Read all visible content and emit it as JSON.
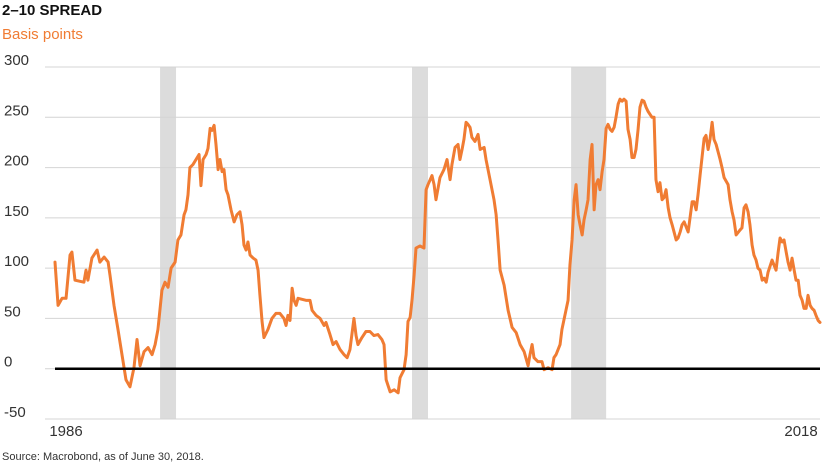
{
  "chart_data": {
    "type": "line",
    "title": "2–10 SPREAD",
    "subtitle": "Basis points",
    "source": "Source: Macrobond, as of June 30, 2018.",
    "color": "#f07c33",
    "shade_color": "#dcdcdc",
    "grid": true,
    "xlim": [
      1986,
      2018.55
    ],
    "xticks": [
      1986,
      2018
    ],
    "ylim": [
      -50,
      300
    ],
    "yticks": [
      -50,
      0,
      50,
      100,
      150,
      200,
      250,
      300
    ],
    "shaded_ranges": [
      [
        1990.47,
        1991.15
      ],
      [
        2001.19,
        2001.87
      ],
      [
        2007.96,
        2009.45
      ]
    ],
    "x": [
      1986.0,
      1986.13,
      1986.3,
      1986.47,
      1986.64,
      1986.72,
      1986.85,
      1987.23,
      1987.32,
      1987.4,
      1987.57,
      1987.79,
      1987.91,
      1988.09,
      1988.26,
      1988.34,
      1988.51,
      1988.68,
      1988.85,
      1989.02,
      1989.19,
      1989.36,
      1989.49,
      1989.62,
      1989.79,
      1989.96,
      1990.13,
      1990.26,
      1990.38,
      1990.55,
      1990.68,
      1990.81,
      1990.94,
      1991.11,
      1991.23,
      1991.36,
      1991.49,
      1991.57,
      1991.66,
      1991.74,
      1991.87,
      1992.0,
      1992.13,
      1992.21,
      1992.3,
      1992.43,
      1992.51,
      1992.6,
      1992.68,
      1992.77,
      1992.85,
      1992.94,
      1993.02,
      1993.11,
      1993.19,
      1993.28,
      1993.36,
      1993.49,
      1993.62,
      1993.74,
      1993.87,
      1993.96,
      1994.04,
      1994.13,
      1994.21,
      1994.3,
      1994.43,
      1994.55,
      1994.64,
      1994.72,
      1994.81,
      1994.89,
      1995.06,
      1995.23,
      1995.4,
      1995.57,
      1995.74,
      1995.83,
      1995.91,
      1996.0,
      1996.09,
      1996.17,
      1996.26,
      1996.34,
      1996.68,
      1996.85,
      1996.94,
      1997.11,
      1997.28,
      1997.45,
      1997.53,
      1997.7,
      1997.83,
      1997.96,
      1998.13,
      1998.3,
      1998.43,
      1998.55,
      1998.72,
      1998.81,
      1998.89,
      1999.06,
      1999.23,
      1999.4,
      1999.57,
      1999.74,
      1999.91,
      2000.0,
      2000.09,
      2000.26,
      2000.43,
      2000.6,
      2000.68,
      2000.85,
      2000.94,
      2001.02,
      2001.11,
      2001.19,
      2001.28,
      2001.36,
      2001.53,
      2001.7,
      2001.79,
      2001.87,
      2002.04,
      2002.13,
      2002.21,
      2002.38,
      2002.55,
      2002.68,
      2002.81,
      2002.89,
      2003.02,
      2003.15,
      2003.23,
      2003.32,
      2003.4,
      2003.49,
      2003.57,
      2003.66,
      2003.74,
      2003.87,
      2004.0,
      2004.09,
      2004.26,
      2004.34,
      2004.51,
      2004.68,
      2004.77,
      2004.85,
      2004.94,
      2005.11,
      2005.28,
      2005.45,
      2005.62,
      2005.79,
      2005.96,
      2006.13,
      2006.21,
      2006.3,
      2006.38,
      2006.55,
      2006.72,
      2006.81,
      2006.98,
      2007.15,
      2007.23,
      2007.32,
      2007.49,
      2007.57,
      2007.74,
      2007.83,
      2007.91,
      2008.0,
      2008.09,
      2008.17,
      2008.26,
      2008.34,
      2008.43,
      2008.51,
      2008.6,
      2008.68,
      2008.77,
      2008.85,
      2008.94,
      2009.02,
      2009.11,
      2009.19,
      2009.28,
      2009.36,
      2009.45,
      2009.53,
      2009.62,
      2009.7,
      2009.79,
      2009.87,
      2009.96,
      2010.04,
      2010.13,
      2010.21,
      2010.3,
      2010.38,
      2010.47,
      2010.55,
      2010.64,
      2010.72,
      2010.81,
      2010.89,
      2010.98,
      2011.06,
      2011.15,
      2011.23,
      2011.4,
      2011.49,
      2011.57,
      2011.66,
      2011.74,
      2011.83,
      2011.91,
      2012.0,
      2012.09,
      2012.17,
      2012.26,
      2012.34,
      2012.43,
      2012.51,
      2012.6,
      2012.68,
      2012.77,
      2012.94,
      2013.02,
      2013.11,
      2013.19,
      2013.28,
      2013.36,
      2013.45,
      2013.53,
      2013.62,
      2013.7,
      2013.79,
      2013.87,
      2013.96,
      2014.04,
      2014.13,
      2014.21,
      2014.3,
      2014.38,
      2014.47,
      2014.64,
      2014.72,
      2014.81,
      2014.89,
      2014.98,
      2015.15,
      2015.23,
      2015.32,
      2015.4,
      2015.49,
      2015.57,
      2015.66,
      2015.74,
      2015.83,
      2015.91,
      2016.0,
      2016.09,
      2016.17,
      2016.26,
      2016.34,
      2016.51,
      2016.68,
      2016.77,
      2016.85,
      2016.94,
      2017.02,
      2017.11,
      2017.19,
      2017.28,
      2017.36,
      2017.45,
      2017.53,
      2017.62,
      2017.7,
      2017.79,
      2017.87,
      2017.96,
      2018.04,
      2018.13,
      2018.21,
      2018.3,
      2018.38,
      2018.47,
      2018.55
    ],
    "values": [
      106,
      63,
      70,
      70,
      113,
      116,
      88,
      86,
      98,
      88,
      110,
      118,
      106,
      111,
      106,
      93,
      63,
      39,
      14,
      -11,
      -18,
      1,
      29,
      3,
      17,
      21,
      14,
      24,
      39,
      78,
      86,
      81,
      100,
      106,
      128,
      133,
      153,
      158,
      173,
      200,
      203,
      208,
      213,
      182,
      208,
      213,
      219,
      239,
      237,
      242,
      223,
      198,
      208,
      196,
      198,
      178,
      173,
      158,
      146,
      153,
      156,
      143,
      123,
      118,
      126,
      113,
      110,
      108,
      98,
      73,
      47,
      31,
      39,
      50,
      55,
      55,
      50,
      43,
      53,
      48,
      80,
      68,
      63,
      70,
      68,
      68,
      58,
      53,
      50,
      43,
      46,
      34,
      24,
      27,
      19,
      14,
      11,
      19,
      50,
      33,
      24,
      31,
      37,
      37,
      33,
      34,
      29,
      24,
      -11,
      -23,
      -21,
      -24,
      -9,
      -1,
      14,
      47,
      51,
      68,
      93,
      120,
      122,
      120,
      178,
      183,
      192,
      183,
      168,
      190,
      198,
      208,
      188,
      203,
      220,
      223,
      208,
      218,
      228,
      245,
      243,
      240,
      230,
      226,
      233,
      218,
      220,
      208,
      188,
      168,
      153,
      128,
      98,
      83,
      58,
      41,
      36,
      24,
      17,
      3,
      14,
      24,
      11,
      7,
      7,
      -1,
      1,
      -1,
      11,
      14,
      24,
      39,
      58,
      68,
      103,
      128,
      168,
      183,
      153,
      143,
      133,
      148,
      158,
      168,
      208,
      223,
      158,
      183,
      188,
      178,
      196,
      208,
      239,
      243,
      238,
      236,
      240,
      250,
      263,
      268,
      266,
      268,
      266,
      238,
      228,
      210,
      210,
      218,
      238,
      260,
      267,
      266,
      260,
      256,
      250,
      250,
      188,
      176,
      185,
      168,
      170,
      178,
      160,
      150,
      143,
      136,
      128,
      130,
      136,
      143,
      146,
      136,
      150,
      166,
      166,
      158,
      173,
      193,
      210,
      229,
      232,
      218,
      228,
      245,
      228,
      223,
      216,
      208,
      200,
      190,
      183,
      168,
      156,
      148,
      133,
      138,
      140,
      160,
      163,
      156,
      143,
      123,
      113,
      108,
      100,
      98,
      88,
      90,
      86,
      96,
      108,
      98,
      116,
      130,
      126,
      128,
      116,
      106,
      98,
      110,
      98,
      88,
      88,
      73,
      68,
      60,
      60,
      73,
      63,
      60,
      58,
      53,
      48,
      46
    ]
  }
}
